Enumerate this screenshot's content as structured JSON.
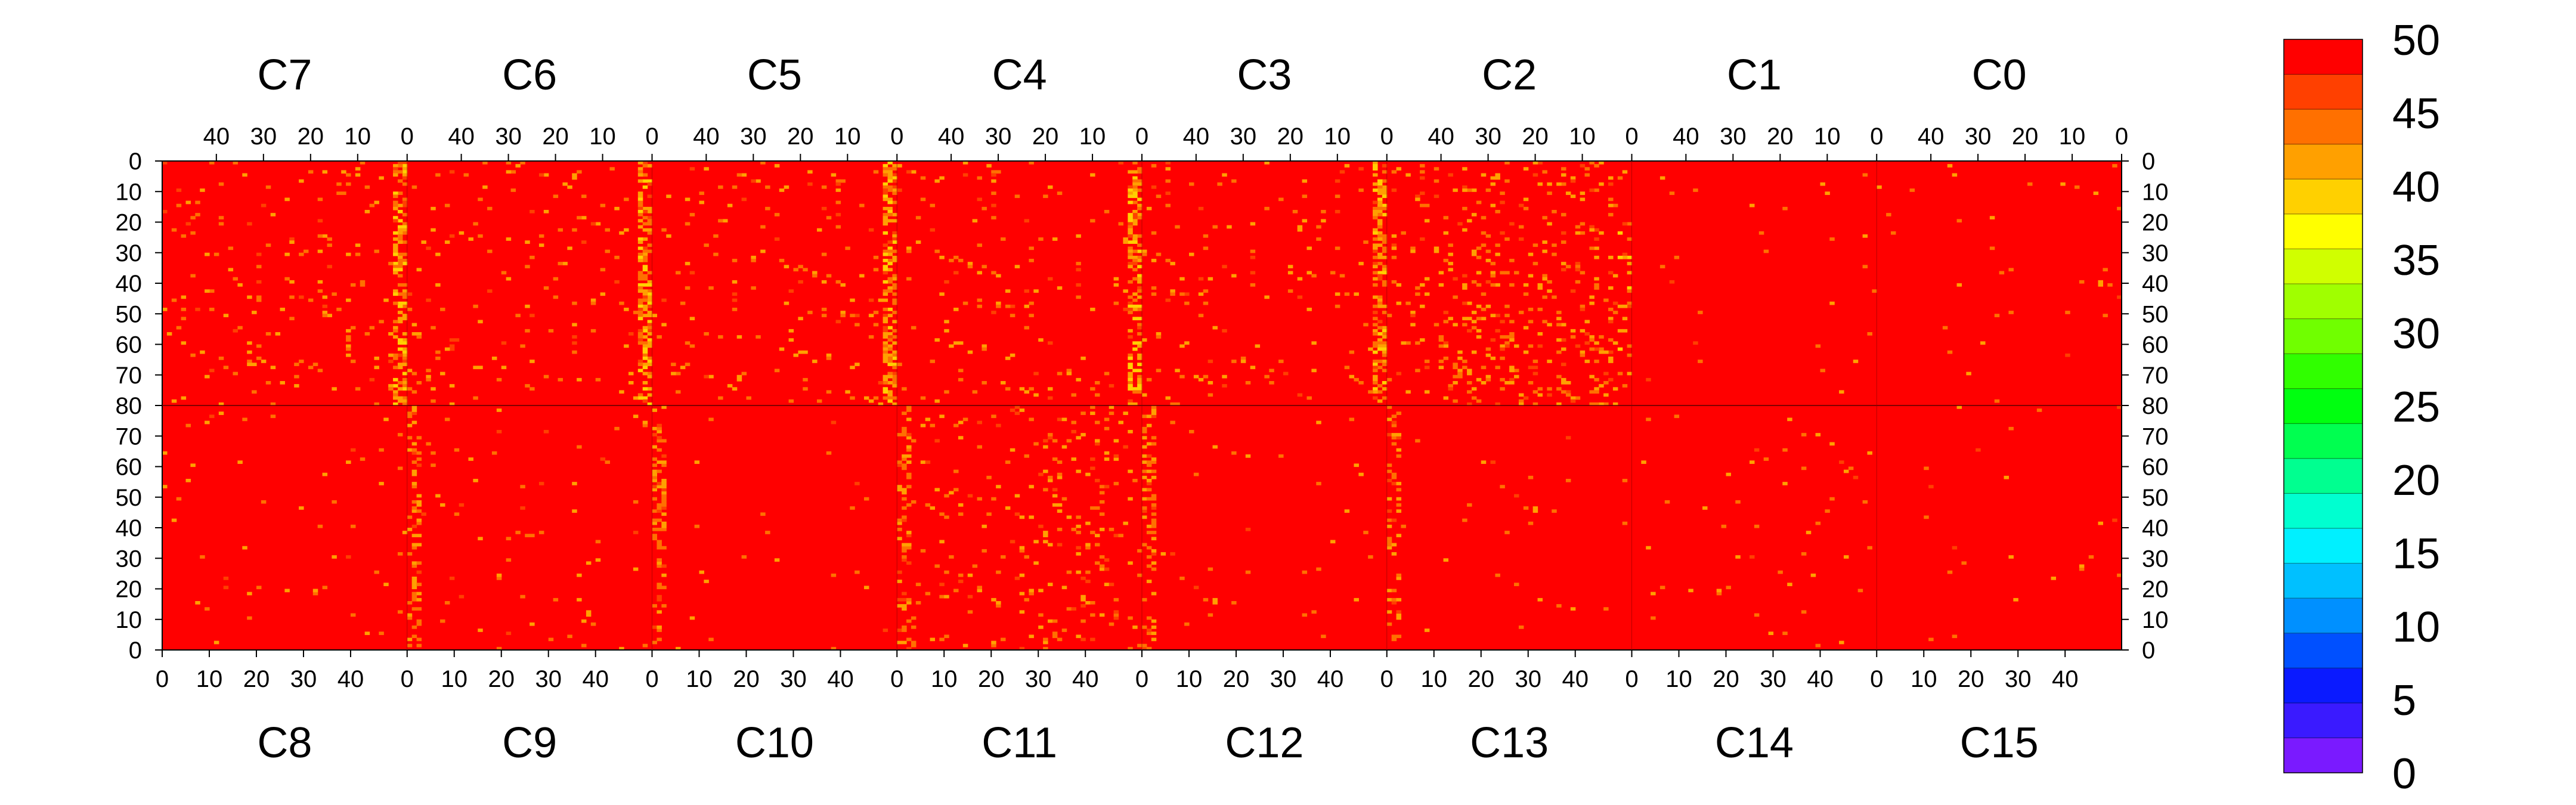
{
  "chart_data": {
    "type": "heatmap",
    "title": "",
    "top_chips": [
      "C7",
      "C6",
      "C5",
      "C4",
      "C3",
      "C2",
      "C1",
      "C0"
    ],
    "bottom_chips": [
      "C8",
      "C9",
      "C10",
      "C11",
      "C12",
      "C13",
      "C14",
      "C15"
    ],
    "top_x_ticks": [
      40,
      30,
      20,
      10,
      0
    ],
    "bottom_x_ticks": [
      0,
      10,
      20,
      30,
      40
    ],
    "top_y_ticks": [
      0,
      10,
      20,
      30,
      40,
      50,
      60,
      70,
      80
    ],
    "bottom_y_ticks": [
      70,
      60,
      50,
      40,
      30,
      20,
      10,
      0
    ],
    "columns_per_chip": 52,
    "rows_per_half": 80,
    "value_range": [
      0,
      50
    ],
    "colorbar": {
      "ticks": [
        0,
        5,
        10,
        15,
        20,
        25,
        30,
        35,
        40,
        45,
        50
      ],
      "colors": [
        "#7a1aff",
        "#3a1aff",
        "#0a1aff",
        "#0050ff",
        "#0090ff",
        "#00c0ff",
        "#00f0ff",
        "#00ffd0",
        "#00ff90",
        "#00ff50",
        "#00ff10",
        "#30ff00",
        "#70ff00",
        "#a0ff00",
        "#d0ff00",
        "#ffff00",
        "#ffd000",
        "#ffa000",
        "#ff7000",
        "#ff4000",
        "#ff0000"
      ]
    },
    "summary": {
      "background_value": 49,
      "hot_columns_top": [
        [
          0,
          1
        ],
        [
          1,
          1
        ],
        [
          2,
          1
        ],
        [
          3,
          1
        ],
        [
          4,
          1
        ],
        [
          5,
          1
        ]
      ],
      "noisy_chip_top": "C2",
      "noisy_chip_bottom": "C11"
    }
  }
}
